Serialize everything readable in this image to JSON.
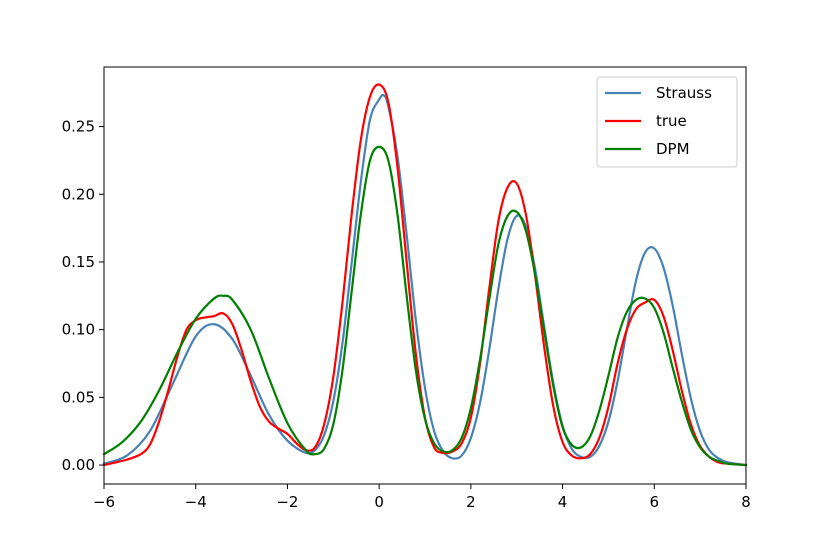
{
  "chart_data": {
    "type": "line",
    "title": "",
    "xlabel": "",
    "ylabel": "",
    "xlim": [
      -6,
      8
    ],
    "ylim": [
      -0.014,
      0.294
    ],
    "x_ticks": [
      -6,
      -4,
      -2,
      0,
      2,
      4,
      6,
      8
    ],
    "x_tick_labels": [
      "−6",
      "−4",
      "−2",
      "0",
      "2",
      "4",
      "6",
      "8"
    ],
    "y_ticks": [
      0.0,
      0.05,
      0.1,
      0.15,
      0.2,
      0.25
    ],
    "y_tick_labels": [
      "0.00",
      "0.05",
      "0.10",
      "0.15",
      "0.20",
      "0.25"
    ],
    "grid": false,
    "legend_position": "top-right",
    "series": [
      {
        "name": "Strauss",
        "color": "#4682b4",
        "x": [
          -6.0,
          -5.5,
          -5.0,
          -4.5,
          -4.0,
          -3.6,
          -3.2,
          -2.8,
          -2.4,
          -2.0,
          -1.6,
          -1.4,
          -1.2,
          -1.0,
          -0.8,
          -0.6,
          -0.4,
          -0.2,
          0.0,
          0.1,
          0.2,
          0.4,
          0.6,
          0.8,
          1.0,
          1.2,
          1.4,
          1.6,
          1.8,
          2.0,
          2.2,
          2.4,
          2.6,
          2.8,
          3.0,
          3.2,
          3.4,
          3.6,
          3.8,
          4.0,
          4.2,
          4.4,
          4.6,
          4.8,
          5.0,
          5.2,
          5.4,
          5.6,
          5.8,
          6.0,
          6.2,
          6.4,
          6.6,
          6.8,
          7.0,
          7.2,
          7.4,
          7.6,
          8.0
        ],
        "y": [
          0.001,
          0.007,
          0.025,
          0.06,
          0.095,
          0.104,
          0.093,
          0.066,
          0.037,
          0.018,
          0.009,
          0.011,
          0.022,
          0.047,
          0.09,
          0.149,
          0.209,
          0.255,
          0.27,
          0.273,
          0.265,
          0.228,
          0.17,
          0.107,
          0.057,
          0.025,
          0.01,
          0.005,
          0.007,
          0.02,
          0.046,
          0.085,
          0.13,
          0.167,
          0.184,
          0.176,
          0.145,
          0.102,
          0.06,
          0.029,
          0.012,
          0.006,
          0.006,
          0.014,
          0.032,
          0.062,
          0.1,
          0.136,
          0.157,
          0.16,
          0.146,
          0.118,
          0.082,
          0.049,
          0.025,
          0.011,
          0.005,
          0.002,
          0.0
        ]
      },
      {
        "name": "true",
        "color": "#ff0000",
        "x": [
          -6.0,
          -5.5,
          -5.2,
          -5.0,
          -4.8,
          -4.6,
          -4.4,
          -4.2,
          -4.0,
          -3.8,
          -3.6,
          -3.4,
          -3.2,
          -3.0,
          -2.8,
          -2.6,
          -2.4,
          -2.2,
          -2.0,
          -1.8,
          -1.6,
          -1.4,
          -1.2,
          -1.0,
          -0.8,
          -0.6,
          -0.4,
          -0.2,
          0.0,
          0.2,
          0.4,
          0.6,
          0.8,
          1.0,
          1.2,
          1.4,
          1.6,
          1.8,
          2.0,
          2.2,
          2.4,
          2.6,
          2.8,
          3.0,
          3.2,
          3.4,
          3.6,
          3.8,
          4.0,
          4.2,
          4.4,
          4.6,
          4.8,
          5.0,
          5.2,
          5.4,
          5.6,
          5.8,
          6.0,
          6.2,
          6.4,
          6.6,
          6.8,
          7.0,
          7.2,
          7.4,
          7.6,
          8.0
        ],
        "y": [
          0.0,
          0.004,
          0.008,
          0.015,
          0.032,
          0.055,
          0.08,
          0.1,
          0.107,
          0.109,
          0.11,
          0.112,
          0.104,
          0.085,
          0.062,
          0.043,
          0.032,
          0.027,
          0.023,
          0.016,
          0.011,
          0.013,
          0.03,
          0.065,
          0.12,
          0.185,
          0.24,
          0.272,
          0.281,
          0.268,
          0.22,
          0.15,
          0.082,
          0.035,
          0.013,
          0.009,
          0.01,
          0.016,
          0.035,
          0.075,
          0.13,
          0.18,
          0.205,
          0.208,
          0.185,
          0.14,
          0.087,
          0.043,
          0.017,
          0.007,
          0.005,
          0.008,
          0.02,
          0.043,
          0.075,
          0.1,
          0.115,
          0.12,
          0.122,
          0.11,
          0.085,
          0.055,
          0.03,
          0.014,
          0.006,
          0.002,
          0.001,
          0.0
        ]
      },
      {
        "name": "DPM",
        "color": "#008000",
        "x": [
          -6.0,
          -5.6,
          -5.2,
          -4.8,
          -4.4,
          -4.0,
          -3.6,
          -3.4,
          -3.2,
          -2.8,
          -2.4,
          -2.0,
          -1.6,
          -1.4,
          -1.2,
          -1.0,
          -0.8,
          -0.6,
          -0.4,
          -0.2,
          0.0,
          0.2,
          0.4,
          0.6,
          0.8,
          1.0,
          1.2,
          1.4,
          1.6,
          1.8,
          2.0,
          2.2,
          2.4,
          2.6,
          2.8,
          3.0,
          3.2,
          3.4,
          3.6,
          3.8,
          4.0,
          4.2,
          4.4,
          4.6,
          4.8,
          5.0,
          5.2,
          5.4,
          5.6,
          5.8,
          6.0,
          6.2,
          6.4,
          6.6,
          6.8,
          7.0,
          7.2,
          7.4,
          7.6,
          8.0
        ],
        "y": [
          0.008,
          0.017,
          0.032,
          0.055,
          0.083,
          0.108,
          0.123,
          0.125,
          0.122,
          0.1,
          0.064,
          0.031,
          0.011,
          0.008,
          0.012,
          0.03,
          0.07,
          0.128,
          0.185,
          0.225,
          0.235,
          0.225,
          0.185,
          0.125,
          0.07,
          0.034,
          0.016,
          0.01,
          0.011,
          0.02,
          0.042,
          0.078,
          0.122,
          0.163,
          0.184,
          0.187,
          0.173,
          0.141,
          0.099,
          0.058,
          0.028,
          0.015,
          0.013,
          0.021,
          0.04,
          0.066,
          0.094,
          0.113,
          0.122,
          0.123,
          0.116,
          0.098,
          0.072,
          0.047,
          0.026,
          0.013,
          0.006,
          0.003,
          0.001,
          0.0
        ]
      }
    ]
  }
}
